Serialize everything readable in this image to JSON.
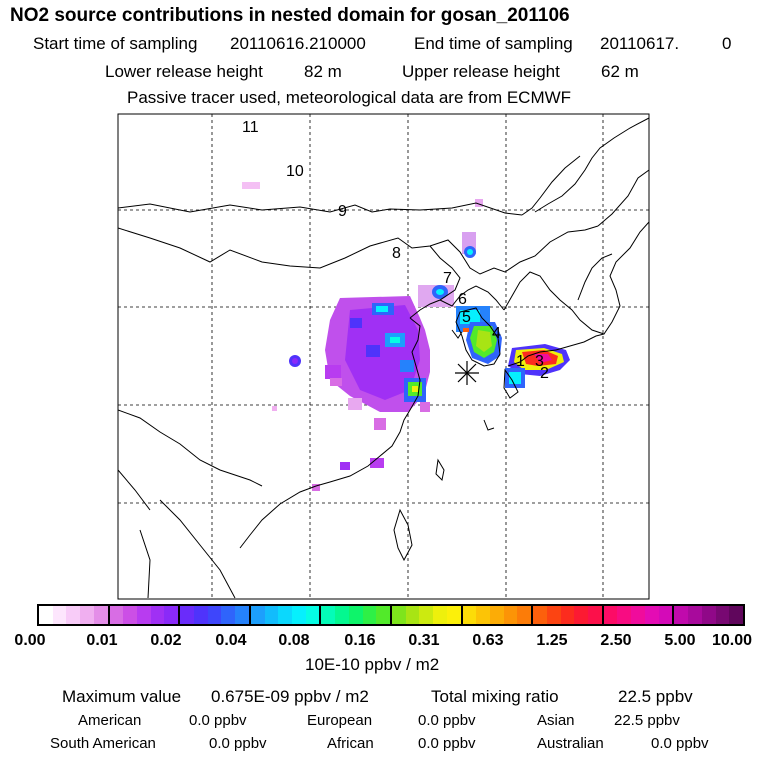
{
  "header": {
    "title": "NO2 source contributions in nested domain for gosan_201106",
    "start_label": "Start time of sampling",
    "start_value": "20110616.210000",
    "end_label": "End time of sampling",
    "end_value": "20110617.",
    "end_suffix": "0",
    "lower_label": "Lower release height",
    "lower_value": "82 m",
    "upper_label": "Upper release height",
    "upper_value": "62 m",
    "note": "Passive tracer used, meteorological data are from ECMWF"
  },
  "map": {
    "trajectory_labels": [
      "11",
      "10",
      "9",
      "8",
      "7",
      "6",
      "5",
      "4",
      "1",
      "3",
      "2"
    ],
    "release_marker": "asterisk-release-site"
  },
  "legend": {
    "ticks": [
      "0.00",
      "0.01",
      "0.02",
      "0.04",
      "0.08",
      "0.16",
      "0.31",
      "0.63",
      "1.25",
      "2.50",
      "5.00",
      "10.00"
    ],
    "unit": "10E-10 ppbv / m2",
    "colors": [
      "#ffffff",
      "#fde6fd",
      "#f8ccf8",
      "#f0aff0",
      "#e48ee8",
      "#d86de4",
      "#cc4fe6",
      "#b83cf0",
      "#a030f4",
      "#8a2af8",
      "#6a2cfa",
      "#4f33fb",
      "#3e46fb",
      "#2f64fb",
      "#2582fc",
      "#1d9ffc",
      "#12bcfc",
      "#0bd8fd",
      "#06f0fd",
      "#05fde4",
      "#04fcb8",
      "#04f890",
      "#0ef46a",
      "#2ef046",
      "#52ea2a",
      "#7ee41c",
      "#a8e414",
      "#ccea10",
      "#eef00c",
      "#fcf00a",
      "#fcdc08",
      "#fcc406",
      "#fcac06",
      "#fc9406",
      "#fc7c08",
      "#fc600c",
      "#fc4412",
      "#fc2c1e",
      "#fc1a32",
      "#fc104a",
      "#fc0c66",
      "#f80c82",
      "#f00c9c",
      "#e40cb4",
      "#d40ab8",
      "#c00aac",
      "#a80a9c",
      "#900888",
      "#780872",
      "#60065c"
    ]
  },
  "stats": {
    "max_label": "Maximum value",
    "max_value": "0.675E-09 ppbv / m2",
    "total_label": "Total mixing ratio",
    "total_value": "22.5 ppbv",
    "regions": [
      {
        "name": "American",
        "value": "0.0 ppbv"
      },
      {
        "name": "European",
        "value": "0.0 ppbv"
      },
      {
        "name": "Asian",
        "value": "22.5 ppbv"
      },
      {
        "name": "South American",
        "value": "0.0 ppbv"
      },
      {
        "name": "African",
        "value": "0.0 ppbv"
      },
      {
        "name": "Australian",
        "value": "0.0 ppbv"
      }
    ]
  }
}
